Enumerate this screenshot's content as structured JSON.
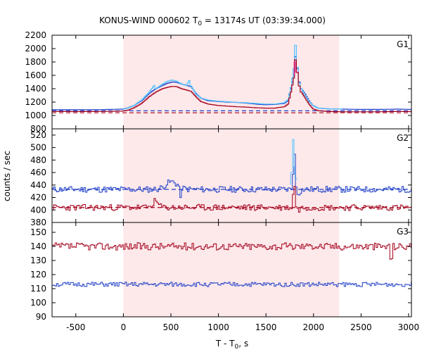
{
  "chart_data": {
    "type": "line",
    "title": "KONUS-WIND 000602 T",
    "title_sub": "0",
    "title_rest": " = 13174s UT (03:39:34.000)",
    "xlabel": "T - T",
    "xlabel_sub": "0",
    "xlabel_rest": ", s",
    "ylabel": "counts / sec",
    "xlim": [
      -750,
      3030
    ],
    "x_ticks": [
      -500,
      0,
      500,
      1000,
      1500,
      2000,
      2500,
      3000
    ],
    "x_tick_labels": [
      "-500",
      "0",
      "500",
      "1000",
      "1500",
      "2000",
      "2500",
      "3000"
    ],
    "highlight_interval": [
      0,
      2270
    ],
    "highlight_color": "#fde8ea",
    "colors": {
      "blue": "#1f3fc8",
      "red": "#a3001b",
      "cyan": "#4ec3ff",
      "magenta": "#ff3fa0"
    },
    "panels": [
      {
        "label": "G1",
        "ylim": [
          800,
          2200
        ],
        "y_ticks": [
          800,
          1000,
          1200,
          1400,
          1600,
          1800,
          2000,
          2200
        ],
        "y_tick_labels": [
          "800",
          "1000",
          "1200",
          "1400",
          "1600",
          "1800",
          "2000",
          "2200"
        ],
        "background_levels": [
          {
            "name": "blue-background",
            "value": 1070,
            "color": "blue"
          },
          {
            "name": "red-background",
            "value": 1040,
            "color": "red"
          }
        ],
        "series": [
          {
            "color": "blue",
            "width": 1.2,
            "points": [
              [
                -750,
                1085
              ],
              [
                -500,
                1085
              ],
              [
                -200,
                1088
              ],
              [
                0,
                1095
              ],
              [
                60,
                1115
              ],
              [
                120,
                1150
              ],
              [
                200,
                1220
              ],
              [
                280,
                1330
              ],
              [
                350,
                1400
              ],
              [
                420,
                1450
              ],
              [
                470,
                1480
              ],
              [
                520,
                1500
              ],
              [
                570,
                1495
              ],
              [
                620,
                1470
              ],
              [
                670,
                1450
              ],
              [
                720,
                1430
              ],
              [
                770,
                1330
              ],
              [
                820,
                1260
              ],
              [
                900,
                1220
              ],
              [
                1000,
                1210
              ],
              [
                1100,
                1200
              ],
              [
                1200,
                1195
              ],
              [
                1300,
                1185
              ],
              [
                1400,
                1170
              ],
              [
                1500,
                1160
              ],
              [
                1600,
                1165
              ],
              [
                1700,
                1180
              ],
              [
                1740,
                1220
              ],
              [
                1770,
                1400
              ],
              [
                1800,
                1600
              ],
              [
                1820,
                1880
              ],
              [
                1840,
                1700
              ],
              [
                1860,
                1500
              ],
              [
                1880,
                1400
              ],
              [
                1920,
                1320
              ],
              [
                1960,
                1220
              ],
              [
                2000,
                1150
              ],
              [
                2060,
                1110
              ],
              [
                2150,
                1100
              ],
              [
                2300,
                1095
              ],
              [
                2500,
                1090
              ],
              [
                2700,
                1090
              ],
              [
                2900,
                1095
              ],
              [
                3030,
                1090
              ]
            ]
          },
          {
            "color": "cyan",
            "width": 1.2,
            "points": [
              [
                0,
                1095
              ],
              [
                60,
                1112
              ],
              [
                120,
                1150
              ],
              [
                200,
                1230
              ],
              [
                280,
                1350
              ],
              [
                330,
                1450
              ],
              [
                350,
                1400
              ],
              [
                420,
                1470
              ],
              [
                470,
                1510
              ],
              [
                520,
                1530
              ],
              [
                570,
                1510
              ],
              [
                620,
                1470
              ],
              [
                670,
                1450
              ],
              [
                700,
                1520
              ],
              [
                720,
                1440
              ],
              [
                770,
                1320
              ],
              [
                820,
                1260
              ],
              [
                900,
                1230
              ],
              [
                1000,
                1215
              ],
              [
                1100,
                1205
              ],
              [
                1200,
                1195
              ],
              [
                1300,
                1190
              ],
              [
                1400,
                1180
              ],
              [
                1500,
                1170
              ],
              [
                1600,
                1170
              ],
              [
                1700,
                1190
              ],
              [
                1740,
                1240
              ],
              [
                1770,
                1420
              ],
              [
                1800,
                1700
              ],
              [
                1820,
                2050
              ],
              [
                1840,
                1720
              ],
              [
                1860,
                1480
              ],
              [
                1880,
                1400
              ],
              [
                1920,
                1300
              ],
              [
                1960,
                1210
              ],
              [
                2000,
                1150
              ],
              [
                2060,
                1110
              ],
              [
                2150,
                1100
              ],
              [
                2300,
                1095
              ]
            ]
          },
          {
            "color": "red",
            "width": 1.2,
            "points": [
              [
                -750,
                1060
              ],
              [
                -500,
                1058
              ],
              [
                -200,
                1060
              ],
              [
                0,
                1065
              ],
              [
                60,
                1080
              ],
              [
                120,
                1115
              ],
              [
                200,
                1180
              ],
              [
                280,
                1280
              ],
              [
                350,
                1350
              ],
              [
                420,
                1400
              ],
              [
                470,
                1420
              ],
              [
                520,
                1435
              ],
              [
                570,
                1430
              ],
              [
                620,
                1400
              ],
              [
                670,
                1380
              ],
              [
                720,
                1360
              ],
              [
                770,
                1280
              ],
              [
                820,
                1210
              ],
              [
                900,
                1170
              ],
              [
                1000,
                1150
              ],
              [
                1100,
                1140
              ],
              [
                1200,
                1130
              ],
              [
                1300,
                1125
              ],
              [
                1400,
                1115
              ],
              [
                1500,
                1110
              ],
              [
                1600,
                1110
              ],
              [
                1700,
                1130
              ],
              [
                1740,
                1170
              ],
              [
                1770,
                1350
              ],
              [
                1800,
                1560
              ],
              [
                1820,
                1830
              ],
              [
                1840,
                1640
              ],
              [
                1860,
                1440
              ],
              [
                1880,
                1350
              ],
              [
                1920,
                1260
              ],
              [
                1960,
                1170
              ],
              [
                2000,
                1100
              ],
              [
                2060,
                1070
              ],
              [
                2150,
                1060
              ],
              [
                2300,
                1055
              ],
              [
                2500,
                1055
              ],
              [
                2700,
                1055
              ],
              [
                2900,
                1060
              ],
              [
                3030,
                1058
              ]
            ]
          },
          {
            "color": "magenta",
            "width": 1,
            "points": [
              [
                1795,
                1600
              ],
              [
                1810,
                1800
              ],
              [
                1825,
                1650
              ],
              [
                1845,
                1450
              ]
            ]
          }
        ]
      },
      {
        "label": "G2",
        "ylim": [
          380,
          530
        ],
        "y_ticks": [
          380,
          400,
          420,
          440,
          460,
          480,
          500,
          520
        ],
        "y_tick_labels": [
          "380",
          "400",
          "420",
          "440",
          "460",
          "480",
          "500",
          "520"
        ],
        "background_levels": [
          {
            "name": "blue-background",
            "value": 433,
            "color": "blue"
          },
          {
            "name": "red-background",
            "value": 404,
            "color": "red"
          }
        ],
        "series": [
          {
            "color": "blue",
            "width": 1,
            "base": 433,
            "noise": 5,
            "seed": 11,
            "bumps": [
              [
                500,
                12,
                90
              ],
              [
                1790,
                60,
                14
              ],
              [
                1830,
                -6,
                30
              ]
            ],
            "dips": [
              [
                600,
                -22,
                8
              ]
            ]
          },
          {
            "color": "cyan",
            "width": 1,
            "points": [
              [
                1760,
                440
              ],
              [
                1780,
                460
              ],
              [
                1795,
                513
              ],
              [
                1805,
                470
              ],
              [
                1815,
                450
              ],
              [
                1830,
                440
              ]
            ]
          },
          {
            "color": "red",
            "width": 1,
            "base": 404,
            "noise": 5,
            "seed": 23,
            "bumps": [
              [
                330,
                10,
                40
              ],
              [
                1790,
                40,
                14
              ],
              [
                1830,
                -4,
                30
              ]
            ],
            "dips": []
          }
        ]
      },
      {
        "label": "G3",
        "ylim": [
          90,
          157
        ],
        "y_ticks": [
          90,
          100,
          110,
          120,
          130,
          140,
          150
        ],
        "y_tick_labels": [
          "90",
          "100",
          "110",
          "120",
          "130",
          "140",
          "150"
        ],
        "background_levels": [],
        "series": [
          {
            "color": "red",
            "width": 1,
            "base": 140,
            "noise": 2.6,
            "seed": 37,
            "bumps": [
              [
                1960,
                5,
                10
              ]
            ],
            "dips": [
              [
                2810,
                -8,
                8
              ]
            ]
          },
          {
            "color": "blue",
            "width": 1,
            "base": 113,
            "noise": 1.6,
            "seed": 51,
            "bumps": [],
            "dips": []
          }
        ]
      }
    ]
  }
}
